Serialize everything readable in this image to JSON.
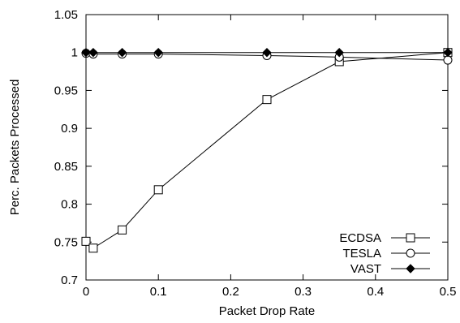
{
  "chart_data": {
    "type": "line",
    "title": "",
    "xlabel": "Packet Drop Rate",
    "ylabel": "Perc. Packets Processed",
    "xlim": [
      0,
      0.5
    ],
    "ylim": [
      0.7,
      1.05
    ],
    "xticks": [
      "0",
      "0.1",
      "0.2",
      "0.3",
      "0.4",
      "0.5"
    ],
    "yticks": [
      "0.7",
      "0.75",
      "0.8",
      "0.85",
      "0.9",
      "0.95",
      "1",
      "1.05"
    ],
    "grid": false,
    "legend_position": "bottom-right",
    "series": [
      {
        "name": "ECDSA",
        "marker": "square",
        "x": [
          0,
          0.01,
          0.05,
          0.1,
          0.25,
          0.35,
          0.5
        ],
        "y": [
          0.751,
          0.742,
          0.766,
          0.819,
          0.938,
          0.988,
          1.0
        ]
      },
      {
        "name": "TESLA",
        "marker": "circle",
        "x": [
          0,
          0.01,
          0.05,
          0.1,
          0.25,
          0.35,
          0.5
        ],
        "y": [
          0.999,
          0.998,
          0.998,
          0.998,
          0.996,
          0.994,
          0.99
        ]
      },
      {
        "name": "VAST",
        "marker": "diamond",
        "x": [
          0,
          0.01,
          0.05,
          0.1,
          0.25,
          0.35,
          0.5
        ],
        "y": [
          1.0,
          1.0,
          1.0,
          1.0,
          1.0,
          1.0,
          1.0
        ]
      }
    ]
  }
}
